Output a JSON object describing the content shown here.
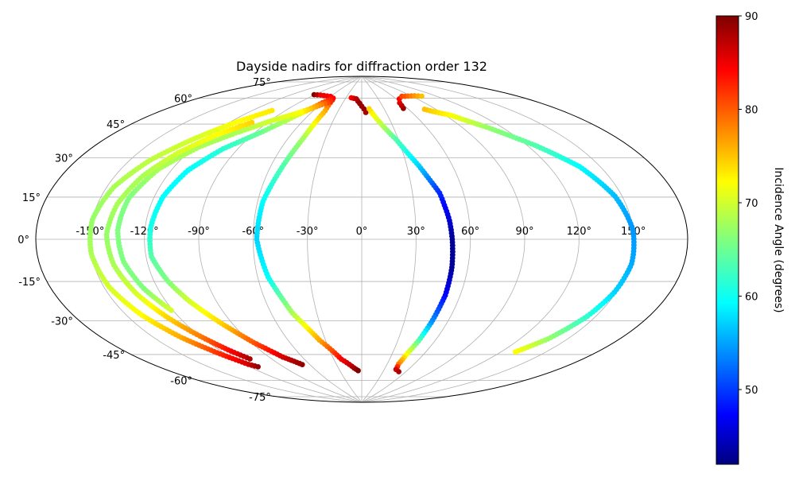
{
  "chart_data": {
    "type": "scatter",
    "title": "Dayside nadirs for diffraction order 132",
    "projection": "aitoff",
    "grid": true,
    "x_tick_labels": [
      "-150°",
      "-120°",
      "-90°",
      "-60°",
      "-30°",
      "0°",
      "30°",
      "60°",
      "90°",
      "120°",
      "150°"
    ],
    "x_ticks": [
      -150,
      -120,
      -90,
      -60,
      -30,
      0,
      30,
      60,
      90,
      120,
      150
    ],
    "y_tick_labels": [
      "-75°",
      "-60°",
      "-45°",
      "-30°",
      "-15°",
      "0°",
      "15°",
      "30°",
      "45°",
      "60°",
      "75°"
    ],
    "y_ticks": [
      -75,
      -60,
      -45,
      -30,
      -15,
      0,
      15,
      30,
      45,
      60,
      75
    ],
    "colorbar": {
      "label": "Incidence Angle (degrees)",
      "range": [
        42,
        90
      ],
      "ticks": [
        50,
        60,
        70,
        80,
        90
      ],
      "tick_labels": [
        "50",
        "60",
        "70",
        "80",
        "90"
      ],
      "colormap": "jet"
    },
    "tracks": [
      {
        "points": [
          [
            -91,
            77,
            90
          ],
          [
            -80,
            77.5,
            85
          ],
          [
            -60,
            77.7,
            84
          ],
          [
            -50,
            76,
            82
          ],
          [
            -46,
            70,
            76
          ],
          [
            -48,
            55,
            68
          ],
          [
            -52,
            40,
            64
          ],
          [
            -57,
            20,
            60
          ],
          [
            -58,
            0,
            58
          ],
          [
            -54,
            -20,
            60
          ],
          [
            -46,
            -40,
            68
          ],
          [
            -35,
            -55,
            76
          ],
          [
            -22,
            -66,
            84
          ],
          [
            -10,
            -71,
            88
          ],
          [
            -5,
            -72.5,
            90
          ]
        ]
      },
      {
        "points": [
          [
            -20,
            78,
            84
          ],
          [
            -10,
            77.5,
            87
          ],
          [
            -3,
            75,
            89
          ],
          [
            3,
            72,
            89
          ],
          [
            5,
            70,
            88
          ]
        ]
      },
      {
        "points": [
          [
            10,
            72,
            74
          ],
          [
            18,
            65,
            70
          ],
          [
            28,
            55,
            64
          ],
          [
            38,
            40,
            58
          ],
          [
            46,
            25,
            50
          ],
          [
            49,
            10,
            46
          ],
          [
            50,
            0,
            43
          ],
          [
            51,
            -15,
            43
          ],
          [
            51,
            -30,
            48
          ],
          [
            49,
            -45,
            55
          ],
          [
            47,
            -55,
            64
          ],
          [
            44,
            -63,
            72
          ],
          [
            43,
            -68,
            78
          ],
          [
            45,
            -71,
            86
          ],
          [
            51,
            -72,
            88
          ]
        ]
      },
      {
        "points": [
          [
            -52,
            77,
            84
          ],
          [
            -60,
            74,
            80
          ],
          [
            -72,
            66,
            70
          ],
          [
            -86,
            55,
            65
          ],
          [
            -100,
            45,
            62
          ],
          [
            -110,
            33,
            60
          ],
          [
            -115,
            20,
            60
          ],
          [
            -117,
            5,
            61
          ],
          [
            -117,
            -8,
            64
          ],
          [
            -112,
            -20,
            66
          ],
          [
            -106,
            -30,
            70
          ],
          [
            -97,
            -42,
            74
          ],
          [
            -88,
            -53,
            80
          ],
          [
            -78,
            -62,
            86
          ],
          [
            -68,
            -67,
            89
          ]
        ]
      },
      {
        "points": [
          [
            -50,
            75,
            82
          ],
          [
            -58,
            73,
            78
          ],
          [
            -72,
            68,
            72
          ],
          [
            -88,
            62,
            70
          ],
          [
            -104,
            53,
            68
          ],
          [
            -117,
            44,
            68
          ],
          [
            -128,
            32,
            68
          ],
          [
            -134,
            18,
            66
          ],
          [
            -135,
            4,
            66
          ],
          [
            -133,
            -10,
            66
          ],
          [
            -128,
            -22,
            66
          ],
          [
            -121,
            -33,
            70
          ]
        ]
      },
      {
        "points": [
          [
            -103,
            66,
            73
          ],
          [
            -115,
            58,
            72
          ],
          [
            -127,
            47,
            70
          ],
          [
            -138,
            35,
            69
          ],
          [
            -146,
            22,
            68
          ],
          [
            -150,
            8,
            67
          ],
          [
            -150,
            -6,
            68
          ],
          [
            -147,
            -20,
            70
          ],
          [
            -141,
            -33,
            72
          ],
          [
            -133,
            -45,
            76
          ],
          [
            -124,
            -55,
            82
          ],
          [
            -117,
            -62,
            86
          ],
          [
            -113,
            -64,
            89
          ]
        ]
      },
      {
        "points": [
          [
            -103,
            59,
            74
          ],
          [
            -115,
            51,
            72
          ],
          [
            -126,
            40,
            70
          ],
          [
            -134,
            28,
            68
          ],
          [
            -139,
            15,
            68
          ],
          [
            -141,
            2,
            67
          ],
          [
            -139,
            -11,
            68
          ],
          [
            -134,
            -24,
            70
          ],
          [
            -127,
            -36,
            74
          ],
          [
            -120,
            -46,
            78
          ],
          [
            -113,
            -55,
            84
          ],
          [
            -108,
            -60,
            88
          ]
        ]
      },
      {
        "points": [
          [
            55,
            71,
            89
          ],
          [
            58,
            74,
            86
          ],
          [
            65,
            76,
            84
          ],
          [
            75,
            77,
            81
          ],
          [
            85,
            76.5,
            79
          ],
          [
            95,
            76,
            77
          ],
          [
            103,
            75,
            75
          ]
        ]
      },
      {
        "points": [
          [
            78,
            69,
            75
          ],
          [
            95,
            64,
            72
          ],
          [
            110,
            55,
            67
          ],
          [
            125,
            44,
            64
          ],
          [
            138,
            32,
            60
          ],
          [
            146,
            18,
            57
          ],
          [
            150,
            4,
            55
          ],
          [
            151,
            -10,
            56
          ],
          [
            149,
            -22,
            58
          ],
          [
            145,
            -33,
            62
          ],
          [
            138,
            -45,
            67
          ],
          [
            130,
            -53,
            72
          ]
        ]
      }
    ]
  }
}
